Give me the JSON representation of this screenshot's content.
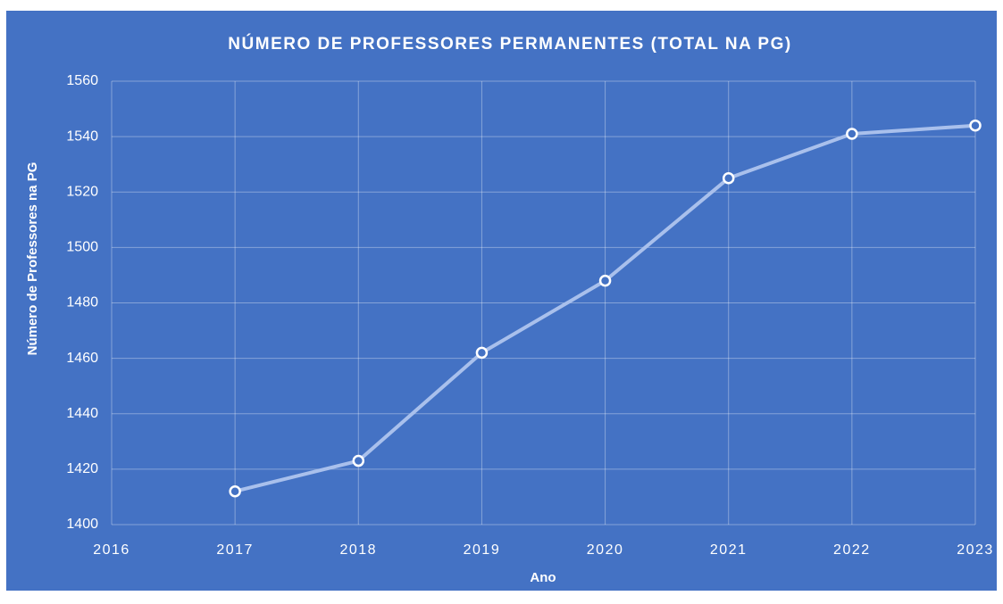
{
  "chart_data": {
    "type": "line",
    "title": "NÚMERO DE PROFESSORES PERMANENTES (TOTAL NA PG)",
    "x_label": "Ano",
    "y_label": "Número de Professores na PG",
    "x": [
      2017,
      2018,
      2019,
      2020,
      2021,
      2022,
      2023
    ],
    "series": [
      {
        "color": "#a9c0ec",
        "values": [
          1412,
          1423,
          1462,
          1488,
          1525,
          1541,
          1544
        ]
      }
    ],
    "xlim": [
      2016,
      2023
    ],
    "xticks": [
      2016,
      2017,
      2018,
      2019,
      2020,
      2021,
      2022,
      2023
    ],
    "ylim": [
      1400,
      1560
    ],
    "yticks": [
      1400,
      1420,
      1440,
      1460,
      1480,
      1500,
      1520,
      1540,
      1560
    ],
    "grid": true
  }
}
